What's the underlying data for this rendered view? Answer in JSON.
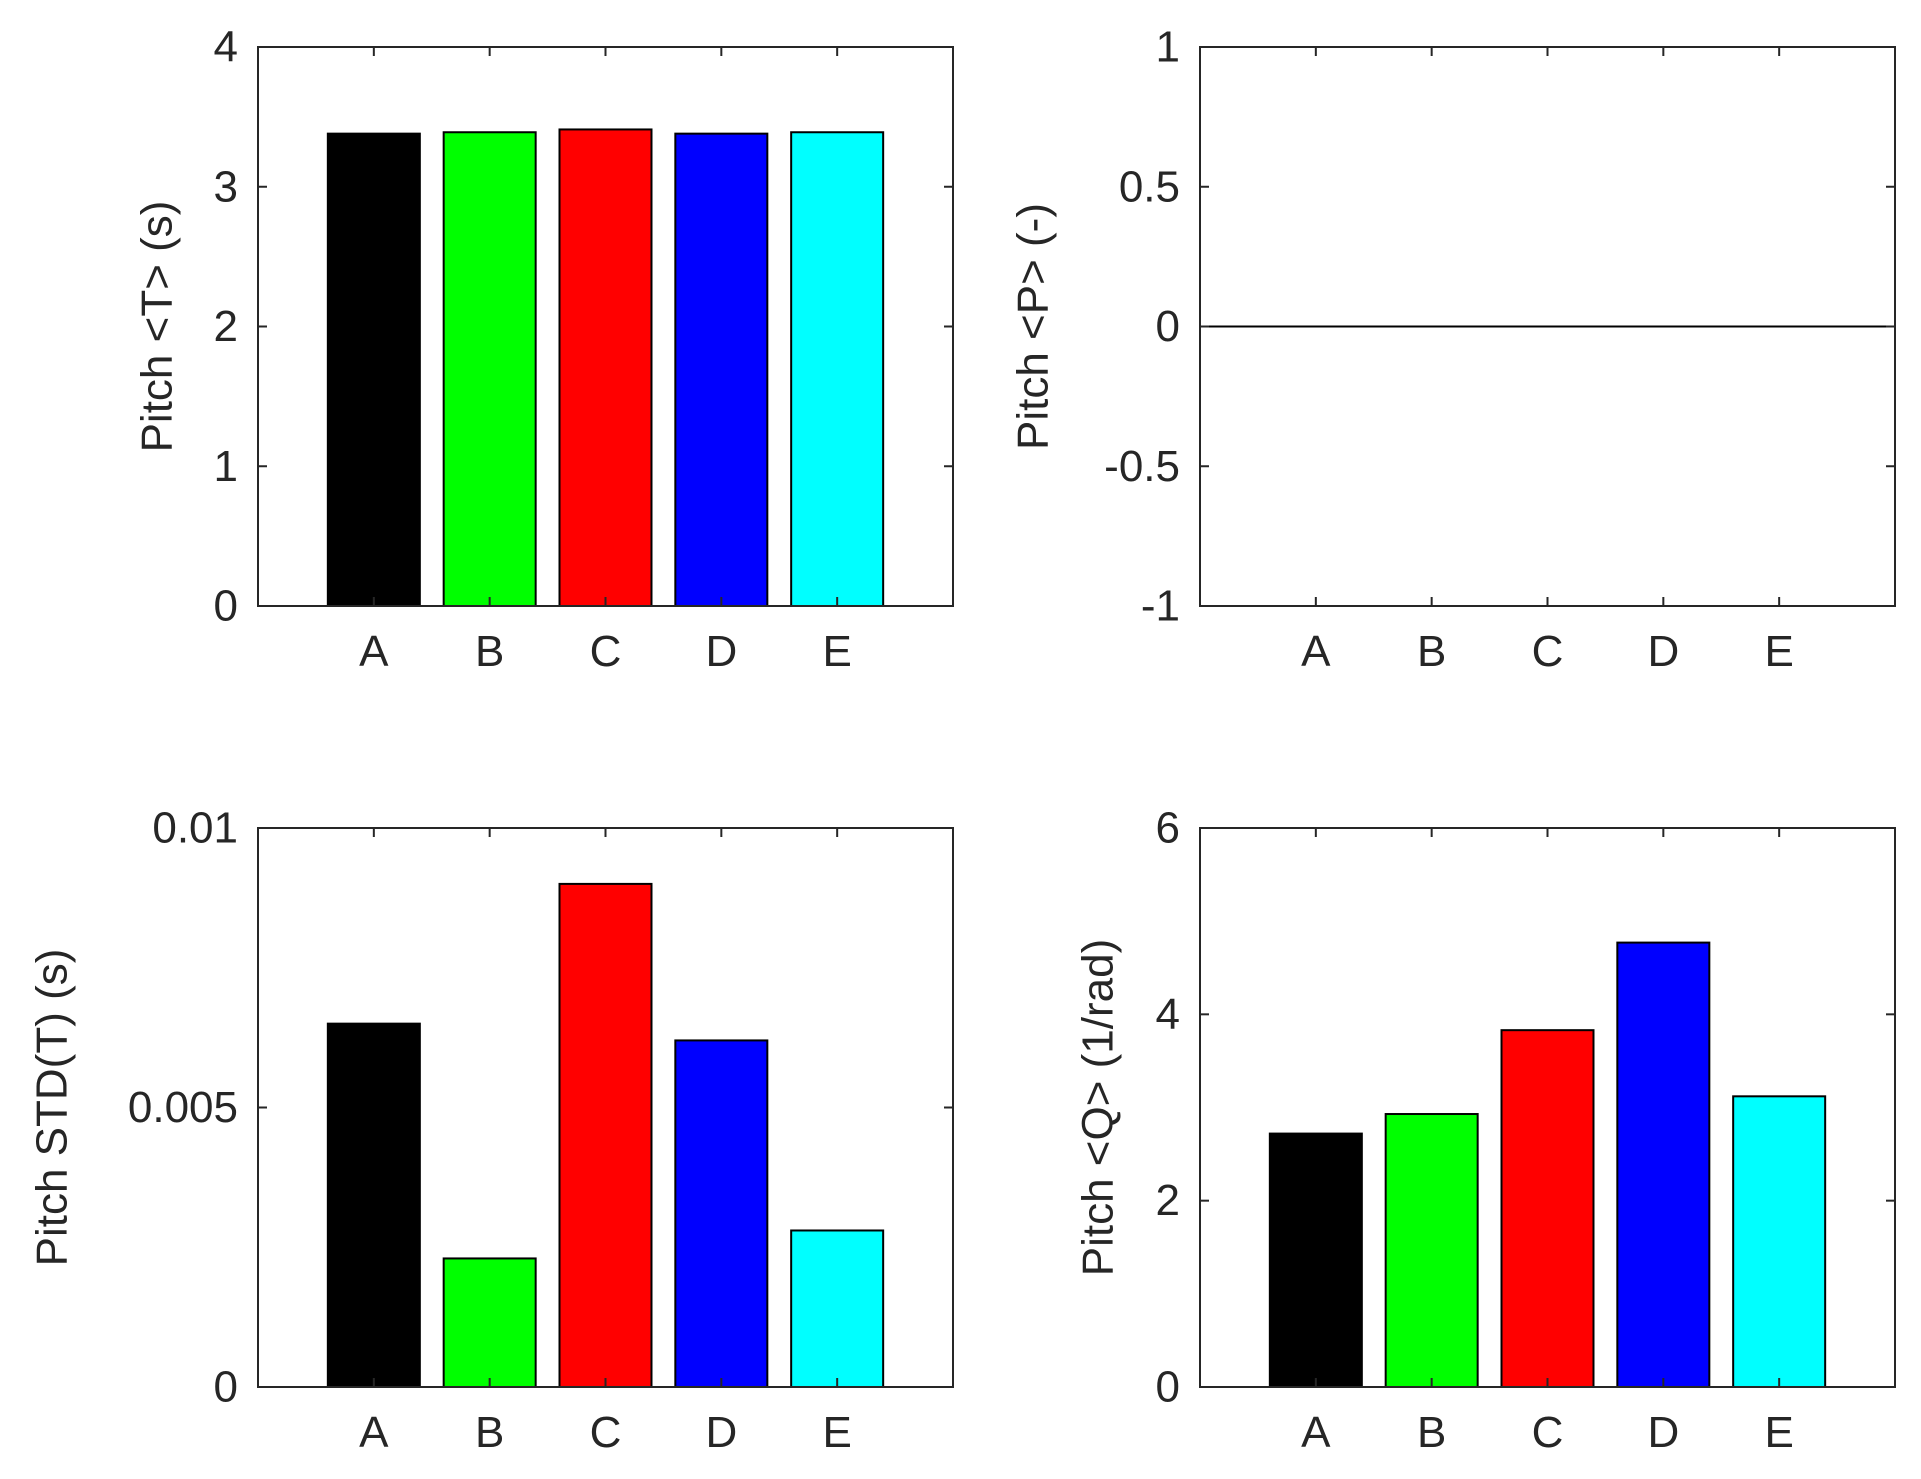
{
  "chart_data": [
    {
      "type": "bar",
      "title": "",
      "xlabel": "",
      "ylabel": "Pitch <T> (s)",
      "categories": [
        "A",
        "B",
        "C",
        "D",
        "E"
      ],
      "values": [
        3.38,
        3.39,
        3.41,
        3.38,
        3.39
      ],
      "colors": [
        "#000000",
        "#00ff00",
        "#ff0000",
        "#0000ff",
        "#00ffff"
      ],
      "ylim": [
        0,
        4
      ],
      "yticks": [
        0,
        1,
        2,
        3,
        4
      ],
      "ytick_labels": [
        "0",
        "1",
        "2",
        "3",
        "4"
      ],
      "grid": false
    },
    {
      "type": "bar",
      "title": "",
      "xlabel": "",
      "ylabel": "Pitch <P> (-)",
      "categories": [
        "A",
        "B",
        "C",
        "D",
        "E"
      ],
      "values": [
        0,
        0,
        0,
        0,
        0
      ],
      "colors": [
        "#000000",
        "#00ff00",
        "#ff0000",
        "#0000ff",
        "#00ffff"
      ],
      "ylim": [
        -1,
        1
      ],
      "yticks": [
        -1,
        -0.5,
        0,
        0.5,
        1
      ],
      "ytick_labels": [
        "-1",
        "-0.5",
        "0",
        "0.5",
        "1"
      ],
      "grid": false
    },
    {
      "type": "bar",
      "title": "",
      "xlabel": "",
      "ylabel": "Pitch STD(T) (s)",
      "categories": [
        "A",
        "B",
        "C",
        "D",
        "E"
      ],
      "values": [
        0.0065,
        0.0023,
        0.009,
        0.0062,
        0.0028
      ],
      "colors": [
        "#000000",
        "#00ff00",
        "#ff0000",
        "#0000ff",
        "#00ffff"
      ],
      "ylim": [
        0,
        0.01
      ],
      "yticks": [
        0,
        0.005,
        0.01
      ],
      "ytick_labels": [
        "0",
        "0.005",
        "0.01"
      ],
      "grid": false
    },
    {
      "type": "bar",
      "title": "",
      "xlabel": "",
      "ylabel": "Pitch <Q> (1/rad)",
      "categories": [
        "A",
        "B",
        "C",
        "D",
        "E"
      ],
      "values": [
        2.72,
        2.93,
        3.83,
        4.77,
        3.12
      ],
      "colors": [
        "#000000",
        "#00ff00",
        "#ff0000",
        "#0000ff",
        "#00ffff"
      ],
      "ylim": [
        0,
        6
      ],
      "yticks": [
        0,
        2,
        4,
        6
      ],
      "ytick_labels": [
        "0",
        "2",
        "4",
        "6"
      ],
      "grid": false
    }
  ]
}
